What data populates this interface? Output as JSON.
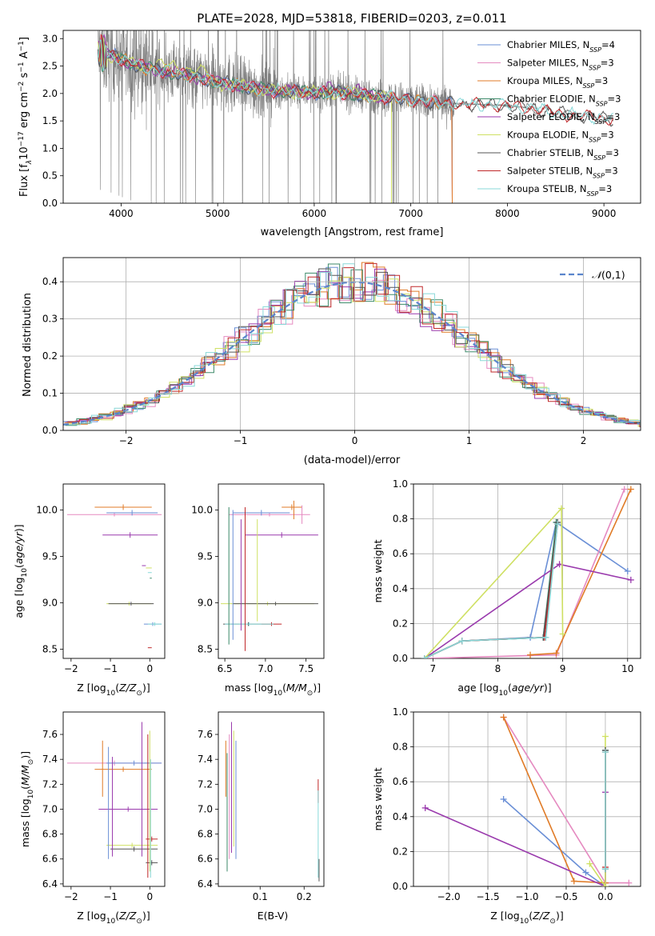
{
  "chart_data": [
    {
      "type": "line",
      "title": "PLATE=2028, MJD=53818, FIBERID=0203, z=0.011",
      "xlabel": "wavelength [Angstrom, rest frame]",
      "ylabel": "Flux [f$_\\lambda$10$^{-17}$ erg cm$^{-2}$ s$^{-1}$ A$^{-1}$]",
      "ylabel_parts": {
        "pre": "Flux [f",
        "sub1": "λ",
        "mid": "10",
        "sup1": "−17",
        "post1": " erg cm",
        "sup2": "−2",
        "post2": " s",
        "sup3": "−1",
        "post3": " A",
        "sup4": "−1",
        "end": "]"
      },
      "xlim": [
        3400,
        9380
      ],
      "ylim": [
        0,
        3.15
      ],
      "xticks": [
        4000,
        5000,
        6000,
        7000,
        8000,
        9000
      ],
      "yticks": [
        0.0,
        0.5,
        1.0,
        1.5,
        2.0,
        2.5,
        3.0
      ],
      "legend": "top-right",
      "grid": false,
      "data_spectrum": {
        "color": "#808080",
        "x_range": [
          3760,
          9100
        ]
      },
      "models": [
        {
          "name": "Chabrier MILES, N",
          "sub": "SSP",
          "suffix": "=4",
          "color": "#6a8fd6"
        },
        {
          "name": "Salpeter MILES, N",
          "sub": "SSP",
          "suffix": "=3",
          "color": "#e58ac0"
        },
        {
          "name": "Kroupa MILES, N",
          "sub": "SSP",
          "suffix": "=3",
          "color": "#e07b27"
        },
        {
          "name": "Chabrier ELODIE, N",
          "sub": "SSP",
          "suffix": "=3",
          "color": "#3d8a6a"
        },
        {
          "name": "Salpeter ELODIE, N",
          "sub": "SSP",
          "suffix": "=3",
          "color": "#9a3aad"
        },
        {
          "name": "Kroupa ELODIE, N",
          "sub": "SSP",
          "suffix": "=3",
          "color": "#cfe063"
        },
        {
          "name": "Chabrier STELIB, N",
          "sub": "SSP",
          "suffix": "=3",
          "color": "#555555"
        },
        {
          "name": "Salpeter STELIB, N",
          "sub": "SSP",
          "suffix": "=3",
          "color": "#c0282a"
        },
        {
          "name": "Kroupa STELIB, N",
          "sub": "SSP",
          "suffix": "=3",
          "color": "#88d8d8"
        }
      ],
      "continuum_x": [
        3760,
        3850,
        3950,
        4050,
        4200,
        4400,
        4600,
        4800,
        5000,
        5300,
        5600,
        5900,
        6200,
        6500,
        6800,
        7100,
        7400,
        7700,
        8000,
        8300,
        8600,
        8900,
        9100
      ],
      "continuum_y": [
        2.75,
        2.72,
        2.66,
        2.58,
        2.5,
        2.42,
        2.36,
        2.3,
        2.2,
        2.12,
        2.05,
        2.02,
        2.02,
        1.98,
        1.92,
        1.86,
        1.82,
        1.8,
        1.78,
        1.72,
        1.62,
        1.58,
        1.52
      ],
      "model_x_max": [
        7430,
        7430,
        7430,
        6800,
        6800,
        6800,
        9100,
        9100,
        9100
      ]
    },
    {
      "type": "histogram",
      "xlabel": "(data-model)/error",
      "ylabel": "Normed distribution",
      "xlim": [
        -2.55,
        2.5
      ],
      "ylim": [
        0,
        0.465
      ],
      "xticks": [
        -2,
        -1,
        0,
        1,
        2
      ],
      "yticks": [
        0.0,
        0.1,
        0.2,
        0.3,
        0.4
      ],
      "grid": true,
      "legend": "top-right",
      "reference": {
        "name": "(0,1)",
        "prefix": "𝒩",
        "color": "#5a85cc"
      },
      "bin_width": 0.1,
      "bins_from": -2.5
    },
    {
      "type": "scatter",
      "xlabel": "Z [log$_{10}$(Z/Z$_\\odot$)]",
      "ylabel": "age  [log$_{10}$(age/yr)]",
      "xlim": [
        -2.2,
        0.38
      ],
      "ylim": [
        8.4,
        10.28
      ],
      "xticks": [
        -2,
        -1,
        0
      ],
      "yticks": [
        8.5,
        9.0,
        9.5,
        10.0
      ],
      "note": "metallicity vs age with error bars"
    },
    {
      "type": "scatter",
      "xlabel": "mass [log$_{10}$(M/M$_\\odot$)]",
      "xlim": [
        6.42,
        7.72
      ],
      "ylim": [
        8.4,
        10.28
      ],
      "xticks": [
        6.5,
        7.0,
        7.5
      ],
      "yticks": [
        8.5,
        9.0,
        9.5,
        10.0
      ]
    },
    {
      "type": "line",
      "xlabel": "age  [log$_{10}$(age/yr)]",
      "ylabel": "mass weight",
      "xlim": [
        6.7,
        10.2
      ],
      "ylim": [
        0,
        1.0
      ],
      "xticks": [
        7,
        8,
        9,
        10
      ],
      "yticks": [
        0.0,
        0.2,
        0.4,
        0.6,
        0.8,
        1.0
      ],
      "grid": true,
      "series": [
        {
          "model": 0,
          "x": [
            6.87,
            7.45,
            8.5,
            8.9,
            10.0
          ],
          "y": [
            0.0,
            0.1,
            0.12,
            0.78,
            0.5
          ]
        },
        {
          "model": 1,
          "x": [
            6.87,
            8.9,
            9.95
          ],
          "y": [
            0.0,
            0.02,
            0.97
          ]
        },
        {
          "model": 2,
          "x": [
            8.5,
            8.9,
            10.05
          ],
          "y": [
            0.02,
            0.03,
            0.97
          ]
        },
        {
          "model": 3,
          "x": [
            6.87,
            7.45,
            8.7,
            8.9
          ],
          "y": [
            0.0,
            0.1,
            0.12,
            0.78
          ]
        },
        {
          "model": 4,
          "x": [
            6.87,
            8.95,
            10.05
          ],
          "y": [
            0.0,
            0.54,
            0.45
          ]
        },
        {
          "model": 5,
          "x": [
            6.87,
            8.98,
            9.0
          ],
          "y": [
            0.0,
            0.86,
            0.14
          ]
        },
        {
          "model": 6,
          "x": [
            6.87,
            7.45,
            8.7,
            8.92
          ],
          "y": [
            0.0,
            0.1,
            0.12,
            0.78
          ]
        },
        {
          "model": 7,
          "x": [
            6.87,
            7.45,
            8.72,
            8.92
          ],
          "y": [
            0.0,
            0.1,
            0.12,
            0.77
          ]
        },
        {
          "model": 8,
          "x": [
            6.87,
            7.45,
            8.74,
            8.92
          ],
          "y": [
            0.0,
            0.1,
            0.12,
            0.77
          ]
        }
      ]
    },
    {
      "type": "scatter",
      "xlabel": "Z [log$_{10}$(Z/Z$_\\odot$)]",
      "ylabel": "mass [log$_{10}$(M/M$_\\odot$)]",
      "xlim": [
        -2.2,
        0.38
      ],
      "ylim": [
        6.38,
        7.78
      ],
      "xticks": [
        -2,
        -1,
        0
      ],
      "yticks": [
        6.4,
        6.6,
        6.8,
        7.0,
        7.2,
        7.4,
        7.6
      ]
    },
    {
      "type": "scatter",
      "xlabel": "E(B-V)",
      "xlim": [
        0.005,
        0.245
      ],
      "ylim": [
        6.38,
        7.78
      ],
      "xticks": [
        0.1,
        0.2
      ],
      "yticks": [
        6.4,
        6.6,
        6.8,
        7.0,
        7.2,
        7.4,
        7.6
      ]
    },
    {
      "type": "line",
      "xlabel": "Z [log$_{10}$(Z/Z$_\\odot$)]",
      "ylabel": "mass weight",
      "xlim": [
        -2.45,
        0.45
      ],
      "ylim": [
        0,
        1.0
      ],
      "xticks": [
        -2.0,
        -1.5,
        -1.0,
        -0.5,
        0.0
      ],
      "yticks": [
        0.0,
        0.2,
        0.4,
        0.6,
        0.8,
        1.0
      ],
      "grid": true,
      "series": [
        {
          "model": 0,
          "x": [
            -1.3,
            -0.25,
            0.0,
            0.0
          ],
          "y": [
            0.5,
            0.08,
            0.0,
            0.78
          ]
        },
        {
          "model": 1,
          "x": [
            -1.3,
            0.0,
            0.3
          ],
          "y": [
            0.97,
            0.02,
            0.02
          ]
        },
        {
          "model": 2,
          "x": [
            -1.3,
            -0.4,
            0.0
          ],
          "y": [
            0.97,
            0.03,
            0.02
          ]
        },
        {
          "model": 3,
          "x": [
            0.0,
            0.0
          ],
          "y": [
            0.1,
            0.78
          ]
        },
        {
          "model": 4,
          "x": [
            -2.3,
            0.0,
            0.0
          ],
          "y": [
            0.45,
            0.0,
            0.54
          ]
        },
        {
          "model": 5,
          "x": [
            -0.2,
            0.0,
            0.0
          ],
          "y": [
            0.13,
            0.0,
            0.86
          ]
        },
        {
          "model": 6,
          "x": [
            0.0,
            0.0
          ],
          "y": [
            0.1,
            0.78
          ]
        },
        {
          "model": 7,
          "x": [
            0.0,
            0.0
          ],
          "y": [
            0.11,
            0.77
          ]
        },
        {
          "model": 8,
          "x": [
            0.0,
            0.0
          ],
          "y": [
            0.1,
            0.77
          ]
        }
      ]
    }
  ],
  "errbars": {
    "agez": [
      [
        1,
        -2.1,
        0.3,
        9.95,
        9.95,
        9.93,
        9.97
      ],
      [
        2,
        -1.4,
        0.05,
        10.03,
        10.03,
        10.0,
        10.06
      ],
      [
        0,
        -1.1,
        0.2,
        9.97,
        9.97,
        9.94,
        10.0
      ],
      [
        4,
        -1.2,
        0.2,
        9.73,
        9.73,
        9.7,
        9.76
      ],
      [
        4,
        -0.2,
        -0.1,
        8.8,
        10.0,
        9.3,
        9.3
      ],
      [
        5,
        -1.1,
        0.05,
        8.99,
        8.99,
        8.97,
        9.01
      ],
      [
        6,
        -1.05,
        0.1,
        8.99,
        8.99,
        8.97,
        9.01
      ],
      [
        3,
        0.0,
        0.05,
        8.5,
        10.03,
        8.99,
        8.99
      ],
      [
        7,
        -0.05,
        0.05,
        8.48,
        8.55,
        8.5,
        8.5
      ],
      [
        0,
        -0.15,
        0.3,
        8.77,
        8.77,
        8.75,
        8.79
      ],
      [
        8,
        -0.05,
        0.3,
        8.77,
        8.77,
        8.75,
        8.79
      ],
      [
        5,
        -0.1,
        0.05,
        8.7,
        10.05,
        9.5,
        9.5
      ],
      [
        8,
        -0.05,
        0.05,
        8.6,
        10.05,
        9.2,
        9.2
      ]
    ],
    "agemass": [
      [
        2,
        7.2,
        7.45,
        10.03,
        10.03,
        10.0,
        10.06
      ],
      [
        1,
        6.55,
        7.55,
        9.95,
        9.95,
        9.93,
        9.97
      ],
      [
        0,
        6.6,
        7.3,
        9.97,
        9.97,
        9.94,
        10.0
      ],
      [
        4,
        6.75,
        7.65,
        9.73,
        9.73,
        9.7,
        9.76
      ],
      [
        5,
        6.45,
        7.6,
        8.99,
        8.99,
        8.97,
        9.01
      ],
      [
        6,
        6.6,
        7.65,
        8.99,
        8.99,
        8.97,
        9.01
      ],
      [
        6,
        6.48,
        7.1,
        8.77,
        8.77,
        8.75,
        8.79
      ],
      [
        7,
        6.95,
        7.2,
        8.77,
        8.77,
        8.75,
        8.79
      ],
      [
        8,
        6.5,
        7.1,
        8.77,
        8.77,
        8.75,
        8.79
      ],
      [
        3,
        6.55,
        6.55,
        8.55,
        10.03,
        9.0,
        9.0
      ],
      [
        0,
        6.6,
        6.6,
        8.6,
        10.0,
        9.0,
        9.0
      ],
      [
        7,
        6.75,
        6.75,
        8.48,
        10.03,
        9.2,
        9.2
      ],
      [
        4,
        6.7,
        6.7,
        8.7,
        9.9,
        9.3,
        9.3
      ],
      [
        5,
        6.9,
        6.9,
        8.8,
        9.9,
        9.4,
        9.4
      ],
      [
        2,
        7.35,
        7.35,
        9.9,
        10.1,
        10.0,
        10.0
      ],
      [
        1,
        7.45,
        7.45,
        9.85,
        10.05,
        9.95,
        9.95
      ]
    ],
    "massz": [
      [
        1,
        -2.1,
        0.3,
        7.37,
        7.37,
        7.35,
        7.39
      ],
      [
        2,
        -1.4,
        0.05,
        7.32,
        7.32,
        7.3,
        7.34
      ],
      [
        4,
        -1.3,
        0.2,
        7.0,
        7.0,
        6.98,
        7.02
      ],
      [
        5,
        -1.1,
        0.2,
        6.71,
        6.71,
        6.69,
        6.73
      ],
      [
        6,
        -1.0,
        0.2,
        6.68,
        6.68,
        6.66,
        6.7
      ],
      [
        7,
        -0.1,
        0.2,
        6.76,
        6.76,
        6.74,
        6.78
      ],
      [
        6,
        -0.1,
        0.2,
        6.57,
        6.57,
        6.55,
        6.59
      ],
      [
        0,
        -1.1,
        0.3,
        7.37,
        7.37,
        7.35,
        7.39
      ],
      [
        2,
        -1.2,
        -1.2,
        7.1,
        7.55,
        7.3,
        7.3
      ],
      [
        0,
        -1.05,
        -1.05,
        6.6,
        7.5,
        7.0,
        7.0
      ],
      [
        4,
        -0.95,
        -0.95,
        6.62,
        7.42,
        7.0,
        7.0
      ],
      [
        4,
        -0.2,
        -0.2,
        6.62,
        7.7,
        7.2,
        7.2
      ],
      [
        7,
        -0.05,
        -0.05,
        6.45,
        7.6,
        7.0,
        7.0
      ],
      [
        5,
        0.0,
        0.0,
        6.5,
        7.63,
        7.1,
        7.1
      ],
      [
        8,
        0.02,
        0.02,
        6.45,
        7.4,
        6.9,
        6.9
      ]
    ],
    "massebv": [
      [
        2,
        0.022,
        0.022,
        7.1,
        7.55,
        7.32,
        7.32
      ],
      [
        3,
        0.025,
        0.025,
        6.5,
        7.45,
        6.97,
        6.97
      ],
      [
        1,
        0.03,
        0.03,
        6.6,
        7.6,
        7.1,
        7.1
      ],
      [
        4,
        0.035,
        0.035,
        6.65,
        7.7,
        7.15,
        7.15
      ],
      [
        5,
        0.04,
        0.04,
        6.7,
        7.63,
        7.2,
        7.2
      ],
      [
        0,
        0.045,
        0.045,
        6.6,
        7.55,
        7.05,
        7.05
      ],
      [
        7,
        0.232,
        0.232,
        7.05,
        7.24,
        7.14,
        7.14
      ],
      [
        8,
        0.232,
        0.232,
        6.45,
        7.15,
        6.8,
        6.8
      ],
      [
        6,
        0.234,
        0.234,
        6.42,
        6.6,
        6.5,
        6.5
      ]
    ]
  }
}
